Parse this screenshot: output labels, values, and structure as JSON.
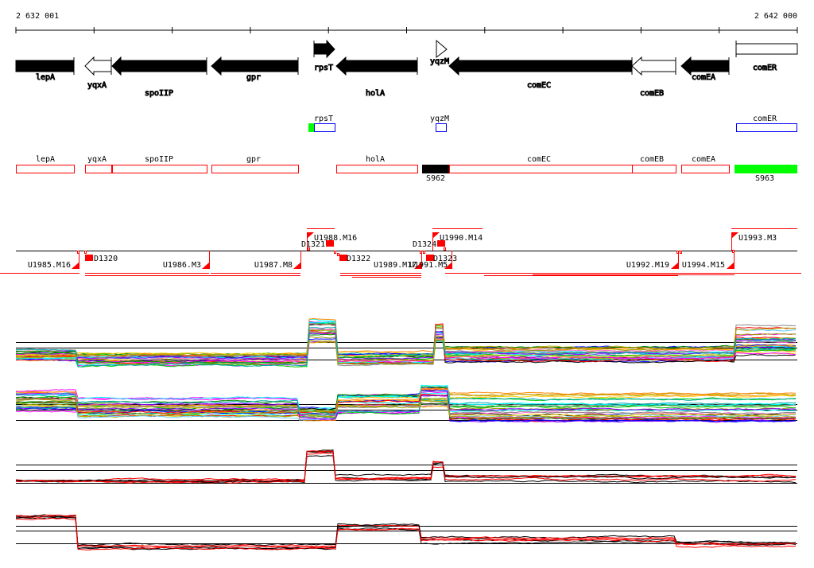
{
  "ruler": {
    "start_label": "2 632 001",
    "end_label": "2 642 000"
  },
  "genes": [
    {
      "name": "lepA",
      "strand": "none",
      "fill": "black"
    },
    {
      "name": "yqxA",
      "strand": "-",
      "fill": "open"
    },
    {
      "name": "spoIIP",
      "strand": "-",
      "fill": "black"
    },
    {
      "name": "gpr",
      "strand": "-",
      "fill": "black"
    },
    {
      "name": "rpsT",
      "strand": "+",
      "fill": "black"
    },
    {
      "name": "holA",
      "strand": "-",
      "fill": "black"
    },
    {
      "name": "yqzM",
      "strand": "+",
      "fill": "open"
    },
    {
      "name": "comEC",
      "strand": "-",
      "fill": "black"
    },
    {
      "name": "comEB",
      "strand": "-",
      "fill": "open"
    },
    {
      "name": "comEA",
      "strand": "-",
      "fill": "black"
    },
    {
      "name": "comER",
      "strand": "none",
      "fill": "open"
    }
  ],
  "blue_track": [
    {
      "name": "rpsT"
    },
    {
      "name": "yqzM"
    },
    {
      "name": "comER"
    }
  ],
  "red_track": [
    {
      "name": "lepA"
    },
    {
      "name": "yqxA"
    },
    {
      "name": "spoIIP"
    },
    {
      "name": "gpr"
    },
    {
      "name": "holA"
    },
    {
      "name": "comEC"
    },
    {
      "name": "comEB"
    },
    {
      "name": "comEA"
    }
  ],
  "segments": {
    "s962": "S962",
    "s963": "S963"
  },
  "units": {
    "u1985": "U1985.M16",
    "u1986": "U1986.M3",
    "u1987": "U1987.M8",
    "u1988": "U1988.M16",
    "u1989": "U1989.M17",
    "u1990": "U1990.M14",
    "u1991": "U1991.M5",
    "u1992": "U1992.M19",
    "u1993": "U1993.M3",
    "u1994": "U1994.M15"
  },
  "downs": {
    "d1320": "D1320",
    "d1321": "D1321",
    "d1322": "D1322",
    "d1323": "D1323",
    "d1324": "D1324"
  },
  "colors": {
    "red": "#ff0000",
    "blue": "#0000ff",
    "green": "#00ff00",
    "black": "#000000"
  }
}
